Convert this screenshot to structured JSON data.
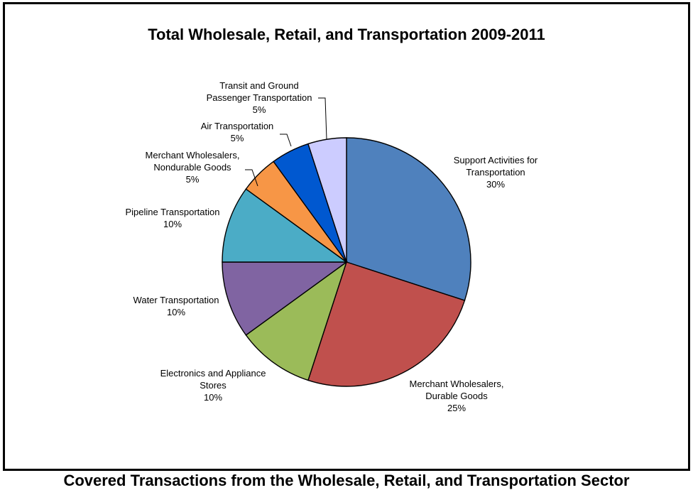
{
  "chart_data": {
    "type": "pie",
    "title": "Total Wholesale, Retail, and Transportation 2009-2011",
    "slices": [
      {
        "name": "Support Activities for Transportation",
        "label_lines": [
          "Support Activities for",
          "Transportation"
        ],
        "value": 30,
        "value_label": "30%",
        "color": "#4F81BD"
      },
      {
        "name": "Merchant Wholesalers, Durable Goods",
        "label_lines": [
          "Merchant Wholesalers,",
          "Durable Goods"
        ],
        "value": 25,
        "value_label": "25%",
        "color": "#C0504D"
      },
      {
        "name": "Electronics and Appliance Stores",
        "label_lines": [
          "Electronics and Appliance",
          "Stores"
        ],
        "value": 10,
        "value_label": "10%",
        "color": "#9BBB59"
      },
      {
        "name": "Water Transportation",
        "label_lines": [
          "Water Transportation"
        ],
        "value": 10,
        "value_label": "10%",
        "color": "#8064A2"
      },
      {
        "name": "Pipeline Transportation",
        "label_lines": [
          "Pipeline Transportation"
        ],
        "value": 10,
        "value_label": "10%",
        "color": "#4BACC6"
      },
      {
        "name": "Merchant Wholesalers, Nondurable Goods",
        "label_lines": [
          "Merchant Wholesalers,",
          "Nondurable Goods"
        ],
        "value": 5,
        "value_label": "5%",
        "color": "#F79646"
      },
      {
        "name": "Air Transportation",
        "label_lines": [
          "Air Transportation"
        ],
        "value": 5,
        "value_label": "5%",
        "color": "#0058D0"
      },
      {
        "name": "Transit and Ground Passenger Transportation",
        "label_lines": [
          "Transit and Ground",
          "Passenger Transportation"
        ],
        "value": 5,
        "value_label": "5%",
        "color": "#CCCCFF"
      }
    ],
    "start_angle": "12 o'clock",
    "direction": "clockwise",
    "legend": "none"
  },
  "caption": "Covered Transactions from the Wholesale, Retail, and Transportation Sector"
}
